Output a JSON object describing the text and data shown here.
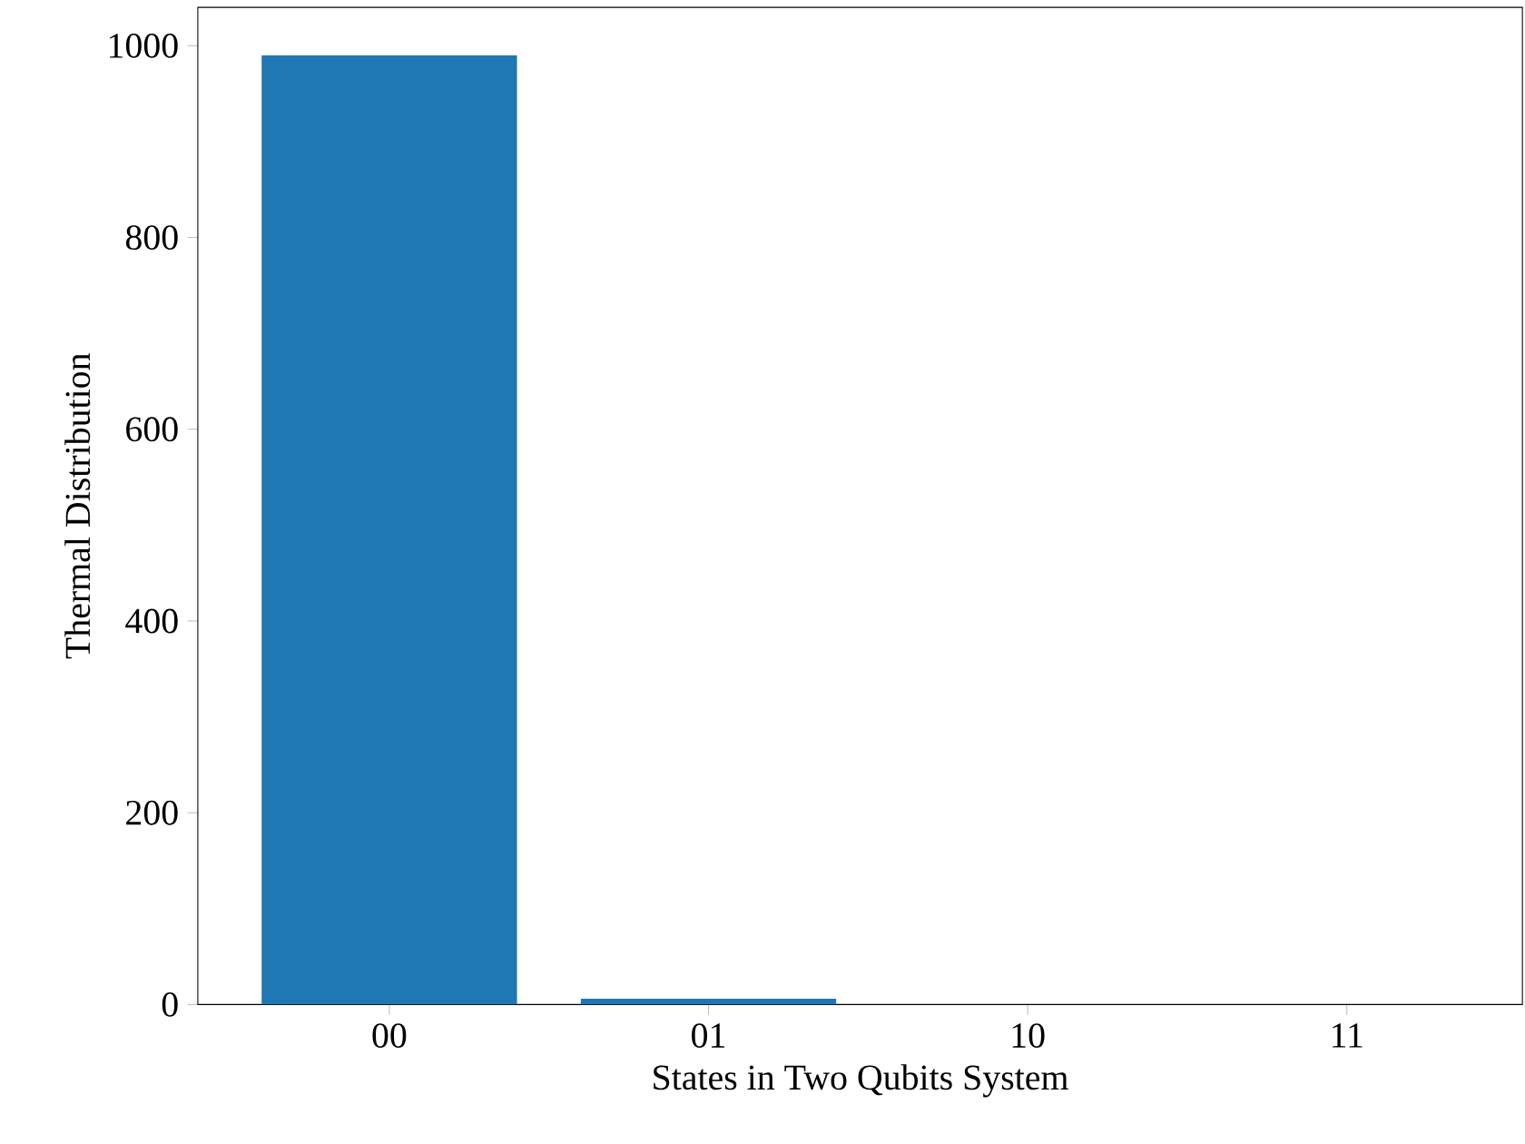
{
  "chart_data": {
    "type": "bar",
    "xlabel": "States in Two Qubits System",
    "ylabel": "Thermal Distribution",
    "categories": [
      "00",
      "01",
      "10",
      "11"
    ],
    "values": [
      990,
      6,
      0,
      0
    ],
    "color": "#1f77b4",
    "ylim": [
      0,
      1040
    ],
    "yticks": [
      0,
      200,
      400,
      600,
      800,
      1000
    ]
  }
}
